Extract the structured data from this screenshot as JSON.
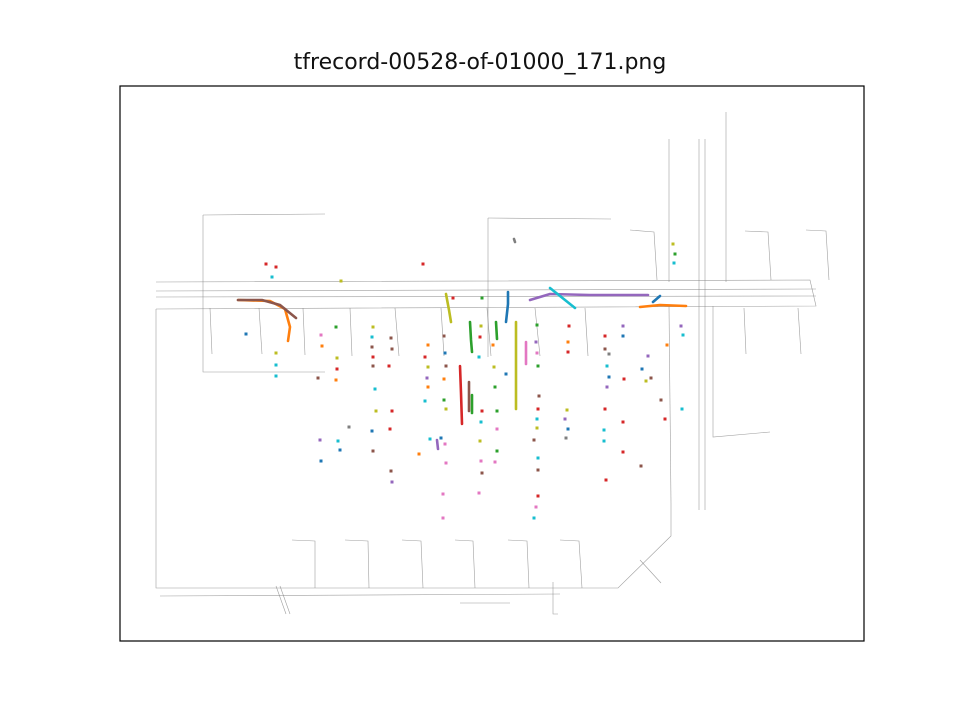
{
  "chart_data": {
    "type": "scatter",
    "title": "tfrecord-00528-of-01000_171.png",
    "xlabel": "",
    "ylabel": "",
    "axes_visible": false,
    "grid": false,
    "legend": "none",
    "map_color": "#7f7f7f",
    "map_lines": [
      [
        [
          156,
          282
        ],
        [
          810,
          280
        ],
        [
          816,
          306
        ],
        [
          156,
          309
        ]
      ],
      [
        [
          156,
          309
        ],
        [
          156,
          588
        ],
        [
          618,
          588
        ],
        [
          671,
          536
        ],
        [
          671,
          503
        ]
      ],
      [
        [
          203,
          215
        ],
        [
          203,
          372
        ],
        [
          325,
          372
        ]
      ],
      [
        [
          203,
          215
        ],
        [
          325,
          214
        ]
      ],
      [
        [
          488,
          218
        ],
        [
          611,
          219
        ]
      ],
      [
        [
          488,
          218
        ],
        [
          488,
          357
        ]
      ],
      [
        [
          669,
          139
        ],
        [
          669,
          282
        ]
      ],
      [
        [
          726,
          112
        ],
        [
          726,
          282
        ]
      ],
      [
        [
          669,
          306
        ],
        [
          671,
          503
        ]
      ],
      [
        [
          713,
          306
        ],
        [
          713,
          437
        ],
        [
          770,
          432
        ]
      ],
      [
        [
          156,
          291
        ],
        [
          816,
          289
        ]
      ],
      [
        [
          156,
          297
        ],
        [
          816,
          296
        ]
      ],
      [
        [
          699,
          139
        ],
        [
          699,
          510
        ]
      ],
      [
        [
          705,
          139
        ],
        [
          705,
          510
        ]
      ],
      [
        [
          210,
          308
        ],
        [
          212,
          354
        ]
      ],
      [
        [
          259,
          308
        ],
        [
          262,
          354
        ]
      ],
      [
        [
          303,
          308
        ],
        [
          305,
          355
        ]
      ],
      [
        [
          350,
          308
        ],
        [
          352,
          356
        ]
      ],
      [
        [
          395,
          308
        ],
        [
          399,
          356
        ]
      ],
      [
        [
          441,
          308
        ],
        [
          444,
          356
        ]
      ],
      [
        [
          487,
          308
        ],
        [
          491,
          356
        ]
      ],
      [
        [
          535,
          308
        ],
        [
          540,
          356
        ]
      ],
      [
        [
          585,
          308
        ],
        [
          588,
          356
        ]
      ],
      [
        [
          292,
          540
        ],
        [
          315,
          541
        ],
        [
          315,
          588
        ]
      ],
      [
        [
          345,
          540
        ],
        [
          368,
          541
        ],
        [
          369,
          588
        ]
      ],
      [
        [
          402,
          540
        ],
        [
          421,
          541
        ],
        [
          423,
          588
        ]
      ],
      [
        [
          455,
          540
        ],
        [
          473,
          541
        ],
        [
          475,
          588
        ]
      ],
      [
        [
          508,
          540
        ],
        [
          527,
          541
        ],
        [
          529,
          588
        ]
      ],
      [
        [
          560,
          540
        ],
        [
          579,
          541
        ],
        [
          582,
          588
        ]
      ],
      [
        [
          630,
          230
        ],
        [
          654,
          232
        ],
        [
          657,
          280
        ]
      ],
      [
        [
          745,
          231
        ],
        [
          768,
          232
        ],
        [
          771,
          280
        ]
      ],
      [
        [
          806,
          230
        ],
        [
          826,
          231
        ],
        [
          829,
          280
        ]
      ],
      [
        [
          744,
          308
        ],
        [
          746,
          354
        ]
      ],
      [
        [
          798,
          308
        ],
        [
          801,
          354
        ]
      ],
      [
        [
          640,
          560
        ],
        [
          661,
          583
        ]
      ],
      [
        [
          160,
          596
        ],
        [
          560,
          594
        ]
      ],
      [
        [
          276,
          586
        ],
        [
          286,
          614
        ]
      ],
      [
        [
          280,
          586
        ],
        [
          290,
          614
        ]
      ],
      [
        [
          460,
          603
        ],
        [
          510,
          603
        ]
      ],
      [
        [
          553,
          582
        ],
        [
          553,
          614
        ],
        [
          558,
          614
        ]
      ]
    ],
    "series": [
      {
        "name": "",
        "color": "#1f77b4",
        "points": [
          [
            508,
            292
          ],
          [
            508,
            304
          ],
          [
            506,
            322
          ]
        ]
      },
      {
        "name": "",
        "color": "#ff7f0e",
        "points": [
          [
            238,
            300
          ],
          [
            270,
            301
          ],
          [
            285,
            309
          ],
          [
            290,
            327
          ],
          [
            288,
            341
          ]
        ]
      },
      {
        "name": "",
        "color": "#2ca02c",
        "points": [
          [
            470,
            322
          ],
          [
            471,
            340
          ],
          [
            472,
            352
          ]
        ]
      },
      {
        "name": "",
        "color": "#d62728",
        "points": [
          [
            460,
            366
          ],
          [
            461,
            393
          ],
          [
            462,
            424
          ]
        ]
      },
      {
        "name": "",
        "color": "#9467bd",
        "points": [
          [
            530,
            300
          ],
          [
            550,
            294
          ],
          [
            590,
            295
          ],
          [
            648,
            295
          ]
        ]
      },
      {
        "name": "",
        "color": "#8c564b",
        "points": [
          [
            238,
            300
          ],
          [
            262,
            300
          ],
          [
            280,
            305
          ],
          [
            296,
            318
          ]
        ]
      },
      {
        "name": "",
        "color": "#e377c2",
        "points": [
          [
            526,
            342
          ],
          [
            526,
            364
          ]
        ]
      },
      {
        "name": "",
        "color": "#7f7f7f",
        "points": [
          [
            514,
            239
          ],
          [
            515,
            242
          ]
        ]
      },
      {
        "name": "",
        "color": "#bcbd22",
        "points": [
          [
            516,
            322
          ],
          [
            516,
            409
          ]
        ]
      },
      {
        "name": "",
        "color": "#17becf",
        "points": [
          [
            550,
            288
          ],
          [
            565,
            300
          ],
          [
            575,
            308
          ]
        ]
      },
      {
        "name": "",
        "color": "#ff7f0e",
        "points": [
          [
            640,
            307
          ],
          [
            660,
            305
          ],
          [
            686,
            306
          ]
        ]
      },
      {
        "name": "",
        "color": "#2ca02c",
        "points": [
          [
            496,
            322
          ],
          [
            497,
            339
          ]
        ]
      },
      {
        "name": "",
        "color": "#bcbd22",
        "points": [
          [
            446,
            294
          ],
          [
            449,
            310
          ],
          [
            451,
            322
          ]
        ]
      },
      {
        "name": "",
        "color": "#1f77b4",
        "points": [
          [
            653,
            302
          ],
          [
            660,
            296
          ]
        ]
      },
      {
        "name": "",
        "color": "#8c564b",
        "points": [
          [
            469,
            382
          ],
          [
            469,
            411
          ]
        ]
      },
      {
        "name": "",
        "color": "#2ca02c",
        "points": [
          [
            472,
            395
          ],
          [
            472,
            413
          ]
        ]
      },
      {
        "name": "",
        "color": "#9467bd",
        "points": [
          [
            437,
            440
          ],
          [
            438,
            449
          ]
        ]
      }
    ],
    "markers": [
      [
        266,
        264,
        "#d62728"
      ],
      [
        276,
        267,
        "#d62728"
      ],
      [
        272,
        277,
        "#17becf"
      ],
      [
        341,
        281,
        "#bcbd22"
      ],
      [
        423,
        264,
        "#d62728"
      ],
      [
        453,
        298,
        "#d62728"
      ],
      [
        482,
        298,
        "#2ca02c"
      ],
      [
        673,
        244,
        "#bcbd22"
      ],
      [
        675,
        254,
        "#2ca02c"
      ],
      [
        674,
        263,
        "#17becf"
      ],
      [
        246,
        334,
        "#1f77b4"
      ],
      [
        276,
        353,
        "#bcbd22"
      ],
      [
        276,
        365,
        "#17becf"
      ],
      [
        276,
        376,
        "#17becf"
      ],
      [
        321,
        335,
        "#e377c2"
      ],
      [
        322,
        346,
        "#ff7f0e"
      ],
      [
        336,
        327,
        "#2ca02c"
      ],
      [
        337,
        358,
        "#bcbd22"
      ],
      [
        337,
        369,
        "#d62728"
      ],
      [
        336,
        380,
        "#ff7f0e"
      ],
      [
        318,
        378,
        "#8c564b"
      ],
      [
        373,
        327,
        "#bcbd22"
      ],
      [
        372,
        337,
        "#17becf"
      ],
      [
        372,
        347,
        "#8c564b"
      ],
      [
        373,
        357,
        "#d62728"
      ],
      [
        373,
        366,
        "#8c564b"
      ],
      [
        391,
        338,
        "#8c564b"
      ],
      [
        392,
        349,
        "#8c564b"
      ],
      [
        389,
        366,
        "#d62728"
      ],
      [
        375,
        389,
        "#17becf"
      ],
      [
        376,
        411,
        "#bcbd22"
      ],
      [
        392,
        411,
        "#d62728"
      ],
      [
        372,
        431,
        "#1f77b4"
      ],
      [
        390,
        429,
        "#d62728"
      ],
      [
        428,
        345,
        "#ff7f0e"
      ],
      [
        425,
        357,
        "#d62728"
      ],
      [
        428,
        367,
        "#bcbd22"
      ],
      [
        427,
        378,
        "#9467bd"
      ],
      [
        428,
        387,
        "#ff7f0e"
      ],
      [
        425,
        401,
        "#17becf"
      ],
      [
        444,
        336,
        "#8c564b"
      ],
      [
        445,
        353,
        "#1f77b4"
      ],
      [
        446,
        366,
        "#8c564b"
      ],
      [
        444,
        379,
        "#ff7f0e"
      ],
      [
        444,
        400,
        "#2ca02c"
      ],
      [
        446,
        409,
        "#bcbd22"
      ],
      [
        481,
        326,
        "#bcbd22"
      ],
      [
        480,
        337,
        "#d62728"
      ],
      [
        479,
        357,
        "#17becf"
      ],
      [
        493,
        345,
        "#ff7f0e"
      ],
      [
        494,
        367,
        "#bcbd22"
      ],
      [
        495,
        387,
        "#2ca02c"
      ],
      [
        482,
        411,
        "#d62728"
      ],
      [
        481,
        422,
        "#17becf"
      ],
      [
        537,
        325,
        "#2ca02c"
      ],
      [
        536,
        342,
        "#9467bd"
      ],
      [
        537,
        353,
        "#e377c2"
      ],
      [
        538,
        366,
        "#2ca02c"
      ],
      [
        539,
        396,
        "#8c564b"
      ],
      [
        538,
        409,
        "#d62728"
      ],
      [
        537,
        419,
        "#17becf"
      ],
      [
        537,
        428,
        "#bcbd22"
      ],
      [
        569,
        326,
        "#d62728"
      ],
      [
        568,
        342,
        "#ff7f0e"
      ],
      [
        568,
        352,
        "#d62728"
      ],
      [
        605,
        336,
        "#d62728"
      ],
      [
        605,
        349,
        "#8c564b"
      ],
      [
        609,
        354,
        "#7f7f7f"
      ],
      [
        607,
        366,
        "#17becf"
      ],
      [
        609,
        377,
        "#1f77b4"
      ],
      [
        607,
        387,
        "#9467bd"
      ],
      [
        623,
        326,
        "#9467bd"
      ],
      [
        623,
        336,
        "#1f77b4"
      ],
      [
        624,
        379,
        "#d62728"
      ],
      [
        605,
        409,
        "#d62728"
      ],
      [
        567,
        410,
        "#bcbd22"
      ],
      [
        565,
        419,
        "#9467bd"
      ],
      [
        568,
        429,
        "#1f77b4"
      ],
      [
        566,
        438,
        "#7f7f7f"
      ],
      [
        604,
        430,
        "#17becf"
      ],
      [
        604,
        441,
        "#17becf"
      ],
      [
        623,
        422,
        "#d62728"
      ],
      [
        623,
        452,
        "#d62728"
      ],
      [
        606,
        480,
        "#d62728"
      ],
      [
        642,
        369,
        "#1f77b4"
      ],
      [
        651,
        378,
        "#8c564b"
      ],
      [
        648,
        356,
        "#9467bd"
      ],
      [
        661,
        400,
        "#8c564b"
      ],
      [
        665,
        419,
        "#d62728"
      ],
      [
        667,
        345,
        "#ff7f0e"
      ],
      [
        681,
        326,
        "#9467bd"
      ],
      [
        683,
        335,
        "#17becf"
      ],
      [
        682,
        409,
        "#17becf"
      ],
      [
        646,
        381,
        "#bcbd22"
      ],
      [
        320,
        440,
        "#9467bd"
      ],
      [
        338,
        441,
        "#17becf"
      ],
      [
        340,
        450,
        "#1f77b4"
      ],
      [
        349,
        427,
        "#7f7f7f"
      ],
      [
        373,
        451,
        "#8c564b"
      ],
      [
        391,
        471,
        "#8c564b"
      ],
      [
        392,
        482,
        "#9467bd"
      ],
      [
        419,
        454,
        "#ff7f0e"
      ],
      [
        430,
        439,
        "#17becf"
      ],
      [
        441,
        438,
        "#1f77b4"
      ],
      [
        445,
        444,
        "#e377c2"
      ],
      [
        446,
        463,
        "#e377c2"
      ],
      [
        443,
        494,
        "#e377c2"
      ],
      [
        443,
        518,
        "#e377c2"
      ],
      [
        321,
        461,
        "#1f77b4"
      ],
      [
        480,
        441,
        "#bcbd22"
      ],
      [
        481,
        461,
        "#e377c2"
      ],
      [
        482,
        473,
        "#8c564b"
      ],
      [
        479,
        493,
        "#e377c2"
      ],
      [
        497,
        429,
        "#e377c2"
      ],
      [
        497,
        451,
        "#2ca02c"
      ],
      [
        495,
        462,
        "#e377c2"
      ],
      [
        497,
        411,
        "#2ca02c"
      ],
      [
        534,
        440,
        "#8c564b"
      ],
      [
        538,
        458,
        "#17becf"
      ],
      [
        538,
        470,
        "#8c564b"
      ],
      [
        538,
        496,
        "#d62728"
      ],
      [
        536,
        507,
        "#e377c2"
      ],
      [
        534,
        518,
        "#17becf"
      ],
      [
        641,
        466,
        "#8c564b"
      ],
      [
        506,
        374,
        "#1f77b4"
      ]
    ]
  }
}
